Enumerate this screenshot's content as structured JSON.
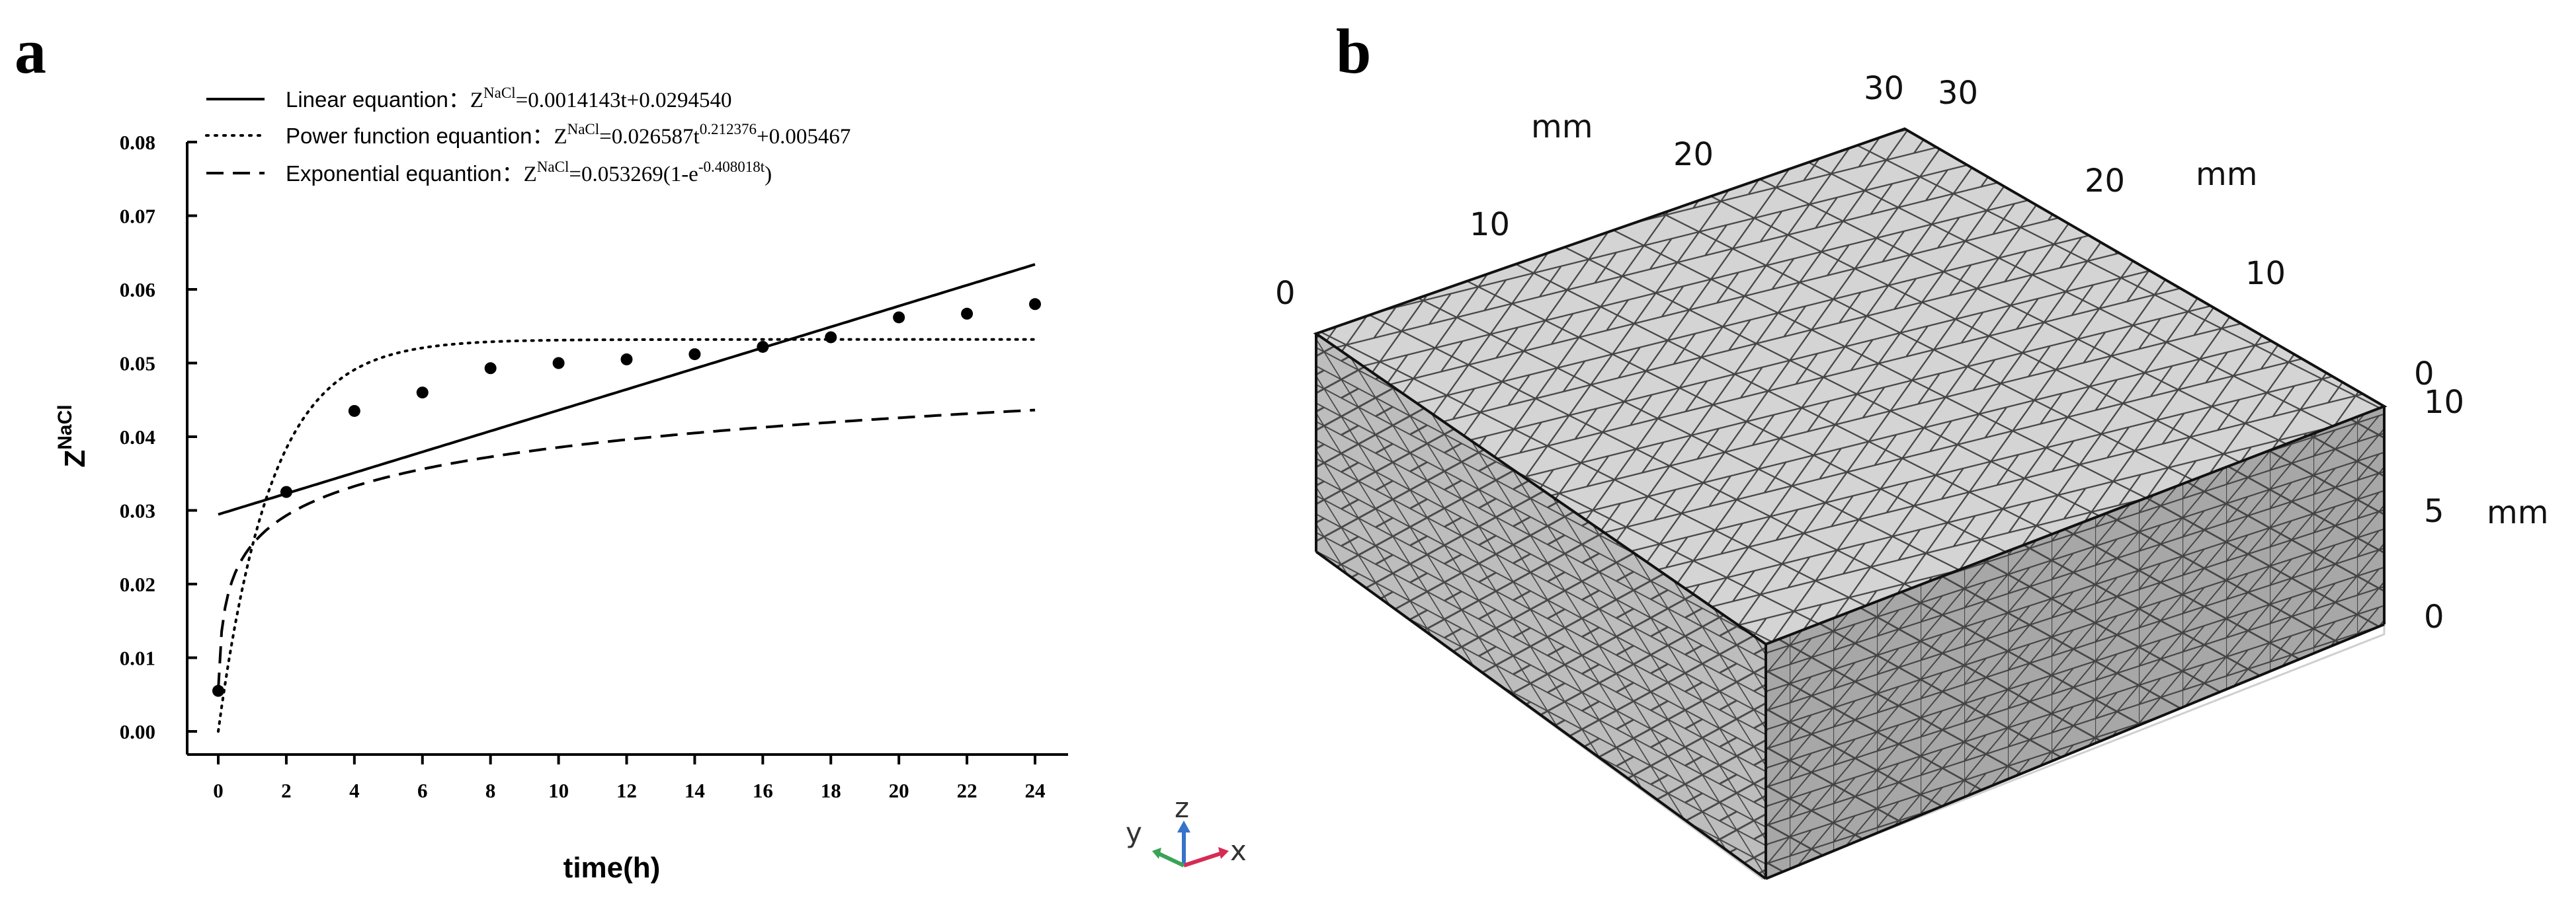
{
  "panels": {
    "a": "a",
    "b": "b"
  },
  "chart_data": {
    "type": "scatter",
    "xlabel": "time(h)",
    "ylabel_main": "Z",
    "ylabel_sup": "NaCl",
    "xlim": [
      0,
      24
    ],
    "ylim": [
      0,
      0.08
    ],
    "xticks": [
      0,
      2,
      4,
      6,
      8,
      10,
      12,
      14,
      16,
      18,
      20,
      22,
      24
    ],
    "yticks": [
      "0.00",
      "0.01",
      "0.02",
      "0.03",
      "0.04",
      "0.05",
      "0.06",
      "0.07",
      "0.08"
    ],
    "grid": false,
    "legend_position": "top-left",
    "points": {
      "x": [
        0,
        2,
        4,
        6,
        8,
        10,
        12,
        14,
        16,
        18,
        20,
        22,
        24
      ],
      "y": [
        0.0055,
        0.0325,
        0.0435,
        0.046,
        0.0493,
        0.05,
        0.0505,
        0.0512,
        0.0522,
        0.0535,
        0.0562,
        0.0567,
        0.058
      ]
    },
    "series": [
      {
        "style": "solid",
        "name": "Linear equantion",
        "eq_prefix": "Z",
        "eq_sup": "NaCl",
        "eq_body": "=0.0014143t+0.0294540",
        "model": "linear",
        "a": 0.0014143,
        "b": 0.029454
      },
      {
        "style": "dotted",
        "name": "Power function equantion",
        "eq_prefix": "Z",
        "eq_sup": "NaCl",
        "eq_body": "=0.026587t",
        "eq_sup2": "0.212376",
        "eq_tail": "+0.005467",
        "model": "saturating",
        "plateau": 0.0532,
        "rate": 0.64
      },
      {
        "style": "dashed",
        "name": "Exponential equantion",
        "eq_prefix": "Z",
        "eq_sup": "NaCl",
        "eq_body": "=0.053269(1-e",
        "eq_sup2": "-0.408018t",
        "eq_tail": ")",
        "model": "loggrowth",
        "a": 0.00565,
        "b": 0.0058,
        "c": 1.45,
        "k": 20
      }
    ]
  },
  "mesh": {
    "x_axis": {
      "ticks": [
        "0",
        "10",
        "20",
        "30"
      ],
      "unit": "mm"
    },
    "y_axis": {
      "ticks": [
        "0",
        "10",
        "20",
        "30"
      ],
      "unit": "mm"
    },
    "z_axis": {
      "ticks": [
        "0",
        "5",
        "10"
      ],
      "unit": "mm"
    },
    "triad": {
      "x": "x",
      "y": "y",
      "z": "z"
    },
    "colors": {
      "top": "#d4d4d4",
      "left": "#bdbdbd",
      "front": "#a7a7a7",
      "edge": "#111111",
      "mesh": "#2a2a2a",
      "triad_x": "#d62b54",
      "triad_y": "#3aa356",
      "triad_z": "#3673c9"
    }
  }
}
